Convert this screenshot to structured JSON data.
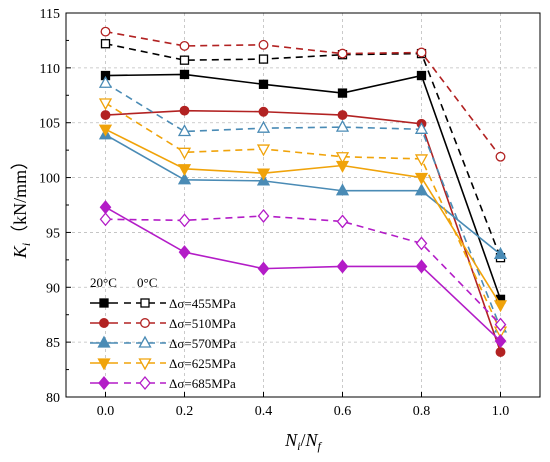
{
  "chart_data": {
    "type": "line",
    "xlabel": {
      "main": "N",
      "sub1": "i",
      "sep": "/",
      "main2": "N",
      "sub2": "f"
    },
    "ylabel": {
      "main": "K",
      "sub": "i",
      "unit": "（kN/mm）"
    },
    "xlim": [
      -0.1,
      1.1
    ],
    "ylim": [
      80,
      115
    ],
    "xticks": [
      0.0,
      0.2,
      0.4,
      0.6,
      0.8,
      1.0
    ],
    "yticks": [
      80,
      85,
      90,
      95,
      100,
      105,
      110,
      115
    ],
    "xtick_labels": [
      "0.0",
      "0.2",
      "0.4",
      "0.6",
      "0.8",
      "1.0"
    ],
    "ytick_labels": [
      "80",
      "85",
      "90",
      "95",
      "100",
      "105",
      "110",
      "115"
    ],
    "grid": true,
    "legend": {
      "placement": "bottom-left",
      "header_20": "20°C",
      "header_0": "0°C",
      "entries": [
        {
          "label": "Δσ=455MPa",
          "color": "#000000",
          "marker": "square"
        },
        {
          "label": "Δσ=510MPa",
          "color": "#b22222",
          "marker": "circle"
        },
        {
          "label": "Δσ=570MPa",
          "color": "#4a8bb5",
          "marker": "triangle"
        },
        {
          "label": "Δσ=625MPa",
          "color": "#f0a30a",
          "marker": "triangle-down"
        },
        {
          "label": "Δσ=685MPa",
          "color": "#b31cc7",
          "marker": "diamond"
        }
      ]
    },
    "x": [
      0.0,
      0.2,
      0.4,
      0.6,
      0.8,
      1.0
    ],
    "series": [
      {
        "group": 0,
        "temp": "20°C",
        "style": "solid",
        "fill": "filled",
        "values": [
          109.3,
          109.4,
          108.5,
          107.7,
          109.3,
          88.9
        ]
      },
      {
        "group": 0,
        "temp": "0°C",
        "style": "dashed",
        "fill": "open",
        "values": [
          112.2,
          110.7,
          110.8,
          111.2,
          111.3,
          92.7
        ]
      },
      {
        "group": 1,
        "temp": "20°C",
        "style": "solid",
        "fill": "filled",
        "values": [
          105.7,
          106.1,
          106.0,
          105.7,
          104.9,
          84.1
        ]
      },
      {
        "group": 1,
        "temp": "0°C",
        "style": "dashed",
        "fill": "open",
        "values": [
          113.3,
          112.0,
          112.1,
          111.3,
          111.4,
          101.9
        ]
      },
      {
        "group": 2,
        "temp": "20°C",
        "style": "solid",
        "fill": "filled",
        "values": [
          103.9,
          99.8,
          99.7,
          98.8,
          98.8,
          93.0
        ]
      },
      {
        "group": 2,
        "temp": "0°C",
        "style": "dashed",
        "fill": "open",
        "values": [
          108.6,
          104.2,
          104.5,
          104.6,
          104.4,
          86.3
        ]
      },
      {
        "group": 3,
        "temp": "20°C",
        "style": "solid",
        "fill": "filled",
        "values": [
          104.4,
          100.8,
          100.4,
          101.1,
          100.0,
          88.4
        ]
      },
      {
        "group": 3,
        "temp": "0°C",
        "style": "dashed",
        "fill": "open",
        "values": [
          106.8,
          102.3,
          102.6,
          101.9,
          101.7,
          86.0
        ]
      },
      {
        "group": 4,
        "temp": "20°C",
        "style": "solid",
        "fill": "filled",
        "values": [
          97.3,
          93.2,
          91.7,
          91.9,
          91.9,
          85.1
        ]
      },
      {
        "group": 4,
        "temp": "0°C",
        "style": "dashed",
        "fill": "open",
        "values": [
          96.2,
          96.1,
          96.5,
          96.0,
          94.0,
          86.6
        ]
      }
    ]
  }
}
